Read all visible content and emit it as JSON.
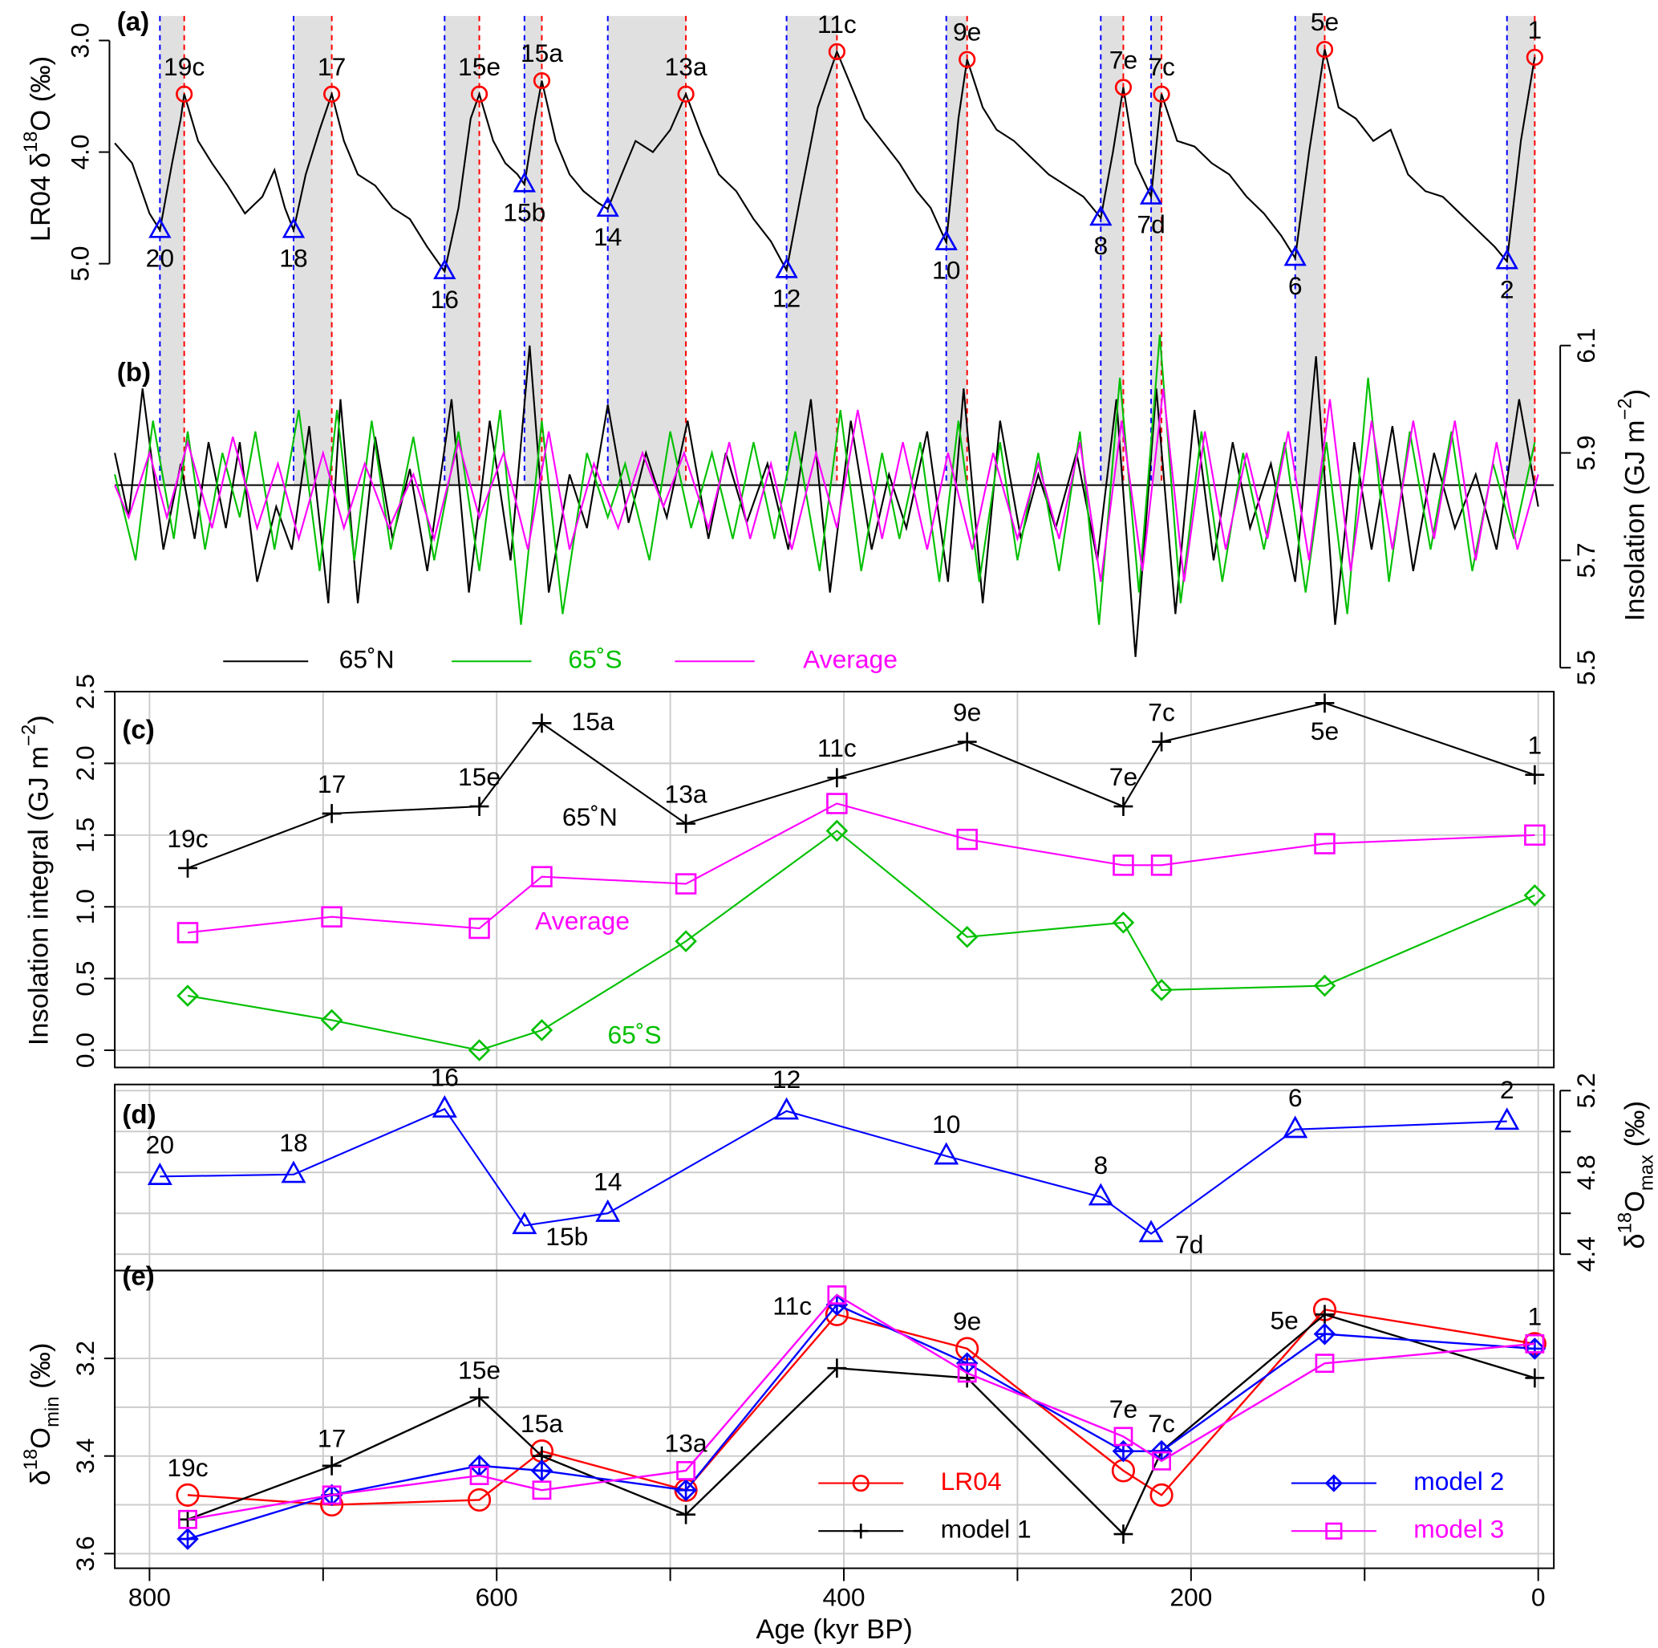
{
  "chart_data": [
    {
      "type": "line",
      "panel": "(a)",
      "ylabel": [
        {
          "text": "LR04 δ"
        },
        {
          "text": "18",
          "shift": "super"
        },
        {
          "text": "O (‰)"
        }
      ],
      "xlim": [
        820,
        -9
      ],
      "ylim": [
        2.78,
        5.1
      ],
      "invert_y": true,
      "yticks": [
        {
          "value": 3,
          "label": "3.0"
        },
        {
          "value": 4,
          "label": "4.0"
        },
        {
          "value": 5,
          "label": "5.0"
        }
      ],
      "color": "#000000",
      "shade_color": "#e0e0e0",
      "x": [
        820,
        810,
        800,
        794,
        787,
        782,
        780,
        772,
        764,
        755,
        745,
        735,
        728,
        722,
        717,
        710,
        702,
        695,
        688,
        680,
        670,
        660,
        650,
        640,
        630,
        622,
        615,
        610,
        602,
        595,
        588,
        584,
        578,
        574,
        566,
        558,
        550,
        542,
        536,
        528,
        520,
        510,
        500,
        491,
        482,
        472,
        462,
        452,
        442,
        433,
        425,
        415,
        404,
        396,
        388,
        378,
        368,
        358,
        350,
        341,
        334,
        329,
        320,
        312,
        302,
        292,
        282,
        272,
        262,
        252,
        245,
        239,
        232,
        223,
        217,
        208,
        198,
        188,
        178,
        168,
        158,
        148,
        140,
        132,
        123,
        115,
        105,
        95,
        85,
        75,
        65,
        55,
        45,
        35,
        25,
        18,
        10,
        2
      ],
      "values": [
        3.92,
        4.1,
        4.55,
        4.7,
        4.1,
        3.7,
        3.48,
        3.9,
        4.1,
        4.3,
        4.55,
        4.4,
        4.16,
        4.5,
        4.7,
        4.2,
        3.8,
        3.48,
        3.9,
        4.2,
        4.3,
        4.5,
        4.6,
        4.85,
        5.07,
        4.5,
        3.7,
        3.48,
        3.9,
        4.1,
        4.2,
        4.29,
        3.7,
        3.36,
        3.9,
        4.2,
        4.35,
        4.45,
        4.51,
        4.2,
        3.9,
        4.0,
        3.8,
        3.48,
        3.85,
        4.2,
        4.35,
        4.6,
        4.8,
        5.06,
        4.4,
        3.6,
        3.1,
        3.4,
        3.7,
        3.9,
        4.1,
        4.35,
        4.5,
        4.81,
        3.7,
        3.17,
        3.6,
        3.8,
        3.9,
        4.05,
        4.2,
        4.3,
        4.4,
        4.59,
        4.0,
        3.42,
        4.1,
        4.4,
        3.48,
        3.9,
        3.95,
        4.1,
        4.2,
        4.4,
        4.55,
        4.75,
        4.95,
        4.0,
        3.08,
        3.6,
        3.7,
        3.9,
        3.8,
        4.2,
        4.35,
        4.4,
        4.55,
        4.7,
        4.85,
        4.98,
        3.9,
        3.15
      ],
      "peaks": {
        "color": "#ff0000",
        "labels": [
          "19c",
          "17",
          "15e",
          "15a",
          "13a",
          "11c",
          "9e",
          "7e",
          "7c",
          "5e",
          "1"
        ],
        "x": [
          780,
          695,
          610,
          574,
          491,
          404,
          329,
          239,
          217,
          123,
          2
        ],
        "values": [
          3.48,
          3.48,
          3.48,
          3.36,
          3.48,
          3.1,
          3.17,
          3.42,
          3.48,
          3.08,
          3.15
        ]
      },
      "troughs": {
        "color": "#0000ff",
        "labels": [
          "20",
          "18",
          "16",
          "15b",
          "14",
          "12",
          "10",
          "8",
          "7d",
          "6",
          "2"
        ],
        "x": [
          794,
          717,
          630,
          584,
          536,
          433,
          341,
          252,
          223,
          140,
          18
        ],
        "values": [
          4.7,
          4.7,
          5.07,
          4.29,
          4.51,
          5.06,
          4.81,
          4.59,
          4.4,
          4.95,
          4.98
        ]
      }
    },
    {
      "type": "line",
      "panel": "(b)",
      "ylabel": [
        {
          "text": "Insolation (GJ m"
        },
        {
          "text": "−2",
          "shift": "super"
        },
        {
          "text": ")"
        }
      ],
      "xlim": [
        820,
        -9
      ],
      "ylim": [
        5.5,
        6.2
      ],
      "yticks": [
        5.5,
        5.7,
        5.9,
        6.1
      ],
      "hline": 5.84,
      "series": [
        {
          "name": "65˚N",
          "color": "#000000",
          "x": [
            820,
            812,
            804,
            792,
            782,
            774,
            766,
            756,
            748,
            738,
            727,
            718,
            708,
            697,
            690,
            680,
            670,
            660,
            650,
            640,
            626,
            616,
            604,
            592,
            581,
            570,
            558,
            548,
            536,
            524,
            514,
            502,
            490,
            478,
            468,
            456,
            444,
            432,
            419,
            408,
            396,
            384,
            374,
            364,
            352,
            340,
            331,
            320,
            310,
            298,
            288,
            278,
            266,
            254,
            243,
            232,
            220,
            209,
            198,
            187,
            176,
            166,
            154,
            140,
            128,
            117,
            106,
            96,
            84,
            72,
            60,
            48,
            36,
            24,
            11,
            0
          ],
          "values": [
            5.9,
            5.78,
            6.02,
            5.72,
            5.88,
            5.74,
            5.92,
            5.76,
            5.92,
            5.66,
            5.8,
            5.72,
            5.95,
            5.62,
            6.0,
            5.62,
            5.93,
            5.74,
            5.87,
            5.68,
            6.0,
            5.64,
            5.96,
            5.7,
            6.1,
            5.64,
            5.86,
            5.76,
            5.99,
            5.77,
            5.9,
            5.78,
            5.96,
            5.74,
            5.9,
            5.77,
            5.88,
            5.72,
            6.0,
            5.64,
            5.96,
            5.72,
            5.86,
            5.76,
            5.94,
            5.66,
            6.02,
            5.62,
            5.96,
            5.74,
            5.86,
            5.76,
            5.9,
            5.7,
            6.0,
            5.52,
            6.02,
            5.6,
            5.98,
            5.7,
            5.92,
            5.76,
            5.88,
            5.66,
            6.08,
            5.58,
            5.92,
            5.72,
            5.95,
            5.68,
            5.9,
            5.76,
            5.86,
            5.72,
            6.0,
            5.8
          ]
        },
        {
          "name": "65˚S",
          "color": "#00c000",
          "x": [
            820,
            808,
            798,
            786,
            778,
            768,
            758,
            748,
            739,
            728,
            714,
            702,
            692,
            682,
            672,
            661,
            648,
            636,
            622,
            610,
            598,
            586,
            574,
            562,
            548,
            536,
            526,
            512,
            500,
            488,
            476,
            464,
            452,
            440,
            428,
            414,
            402,
            390,
            378,
            368,
            356,
            345,
            334,
            322,
            310,
            300,
            288,
            276,
            264,
            253,
            241,
            230,
            218,
            206,
            194,
            182,
            170,
            158,
            146,
            134,
            122,
            110,
            98,
            86,
            74,
            62,
            50,
            38,
            26,
            14,
            2
          ],
          "values": [
            5.86,
            5.7,
            5.96,
            5.74,
            5.94,
            5.72,
            5.9,
            5.78,
            5.94,
            5.72,
            5.98,
            5.68,
            5.98,
            5.7,
            5.96,
            5.72,
            5.93,
            5.7,
            5.94,
            5.68,
            5.98,
            5.58,
            5.96,
            5.6,
            5.9,
            5.78,
            5.88,
            5.7,
            5.94,
            5.76,
            5.9,
            5.74,
            5.92,
            5.74,
            5.94,
            5.68,
            5.98,
            5.68,
            5.9,
            5.74,
            5.92,
            5.66,
            5.96,
            5.66,
            5.92,
            5.7,
            5.9,
            5.68,
            5.94,
            5.58,
            6.04,
            5.64,
            6.12,
            5.62,
            5.94,
            5.66,
            5.9,
            5.72,
            5.92,
            5.64,
            5.92,
            5.6,
            6.04,
            5.66,
            5.94,
            5.72,
            5.94,
            5.68,
            5.88,
            5.74,
            5.92
          ]
        },
        {
          "name": "Average",
          "color": "#ff00ff",
          "x": [
            820,
            812,
            800,
            790,
            778,
            764,
            752,
            738,
            726,
            714,
            700,
            688,
            676,
            662,
            648,
            636,
            622,
            610,
            596,
            582,
            570,
            558,
            544,
            530,
            516,
            504,
            492,
            478,
            466,
            454,
            442,
            430,
            416,
            404,
            392,
            378,
            366,
            352,
            340,
            326,
            314,
            300,
            288,
            276,
            264,
            252,
            240,
            228,
            216,
            204,
            192,
            180,
            168,
            156,
            144,
            132,
            120,
            108,
            96,
            84,
            72,
            60,
            48,
            36,
            24,
            12,
            0
          ],
          "values": [
            5.84,
            5.78,
            5.9,
            5.78,
            5.92,
            5.76,
            5.93,
            5.76,
            5.88,
            5.74,
            5.9,
            5.76,
            5.88,
            5.76,
            5.86,
            5.74,
            5.92,
            5.78,
            5.9,
            5.72,
            5.94,
            5.72,
            5.88,
            5.76,
            5.9,
            5.8,
            5.9,
            5.76,
            5.92,
            5.74,
            5.88,
            5.72,
            5.9,
            5.76,
            5.98,
            5.74,
            5.92,
            5.72,
            5.9,
            5.72,
            5.9,
            5.74,
            5.88,
            5.74,
            5.92,
            5.66,
            5.96,
            5.68,
            6.02,
            5.66,
            5.94,
            5.72,
            5.9,
            5.74,
            5.94,
            5.7,
            6.0,
            5.68,
            5.96,
            5.72,
            5.96,
            5.74,
            5.96,
            5.7,
            5.92,
            5.72,
            5.86
          ]
        }
      ]
    },
    {
      "type": "line",
      "panel": "(c)",
      "ylabel": [
        {
          "text": "Insolation integral (GJ m"
        },
        {
          "text": "−2",
          "shift": "super"
        },
        {
          "text": ")"
        }
      ],
      "xlim": [
        820,
        -9
      ],
      "ylim": [
        -0.12,
        2.5
      ],
      "yticks": [
        {
          "value": 0,
          "label": "0.0"
        },
        0.5,
        {
          "value": 1,
          "label": "1.0"
        },
        1.5,
        {
          "value": 2,
          "label": "2.0"
        },
        2.5
      ],
      "xgrid": [
        800,
        700,
        600,
        500,
        400,
        300,
        200,
        100,
        0
      ],
      "grid": true,
      "labels": [
        "19c",
        "17",
        "15e",
        "15a",
        "13a",
        "11c",
        "9e",
        "7e",
        "7c",
        "5e",
        "1"
      ],
      "x": [
        778,
        695,
        610,
        574,
        491,
        404,
        329,
        239,
        217,
        123,
        2
      ],
      "series": [
        {
          "name": "65˚N",
          "color": "#000000",
          "marker": "plus",
          "values": [
            1.27,
            1.65,
            1.7,
            2.28,
            1.58,
            1.9,
            2.15,
            1.7,
            2.15,
            2.42,
            1.92
          ]
        },
        {
          "name": "Average",
          "color": "#ff00ff",
          "marker": "square",
          "values": [
            0.82,
            0.93,
            0.85,
            1.21,
            1.16,
            1.72,
            1.47,
            1.29,
            1.29,
            1.44,
            1.5
          ]
        },
        {
          "name": "65˚S",
          "color": "#00c000",
          "marker": "diamond",
          "values": [
            0.38,
            0.21,
            0.0,
            0.14,
            0.76,
            1.53,
            0.79,
            0.89,
            0.42,
            0.45,
            1.08
          ]
        }
      ]
    },
    {
      "type": "line",
      "panel": "(d)",
      "ylabel": [
        {
          "text": "δ"
        },
        {
          "text": "18",
          "shift": "super"
        },
        {
          "text": "O"
        },
        {
          "text": "max",
          "shift": "sub"
        },
        {
          "text": " (‰)"
        }
      ],
      "xlim": [
        820,
        -9
      ],
      "ylim": [
        4.32,
        5.23
      ],
      "yticks": [
        4.4,
        4.8,
        5.2
      ],
      "ygrid": [
        4.4,
        4.6,
        4.8,
        5.0,
        5.2
      ],
      "xgrid": [
        800,
        700,
        600,
        500,
        400,
        300,
        200,
        100,
        0
      ],
      "grid": true,
      "labels": [
        "20",
        "18",
        "16",
        "15b",
        "14",
        "12",
        "10",
        "8",
        "7d",
        "6",
        "2"
      ],
      "x": [
        794,
        717,
        630,
        584,
        536,
        433,
        341,
        252,
        223,
        140,
        18
      ],
      "color": "#0000ff",
      "marker": "triangle",
      "values": [
        4.78,
        4.79,
        5.11,
        4.54,
        4.6,
        5.1,
        4.88,
        4.68,
        4.5,
        5.01,
        5.05
      ]
    },
    {
      "type": "line",
      "panel": "(e)",
      "ylabel": [
        {
          "text": "δ"
        },
        {
          "text": "18",
          "shift": "super"
        },
        {
          "text": "O"
        },
        {
          "text": "min",
          "shift": "sub"
        },
        {
          "text": " (‰)"
        }
      ],
      "xlabel": "Age (kyr BP)",
      "xlim": [
        820,
        -9
      ],
      "ylim": [
        3.02,
        3.63
      ],
      "invert_y": true,
      "yticks": [
        3.2,
        3.4,
        3.6
      ],
      "ygrid": [
        3.2,
        3.3,
        3.4,
        3.5,
        3.6
      ],
      "xticks": [
        800,
        600,
        400,
        200,
        0
      ],
      "xgrid": [
        800,
        700,
        600,
        500,
        400,
        300,
        200,
        100,
        0
      ],
      "grid": true,
      "labels": [
        "19c",
        "17",
        "15e",
        "15a",
        "13a",
        "11c",
        "9e",
        "7e",
        "7c",
        "5e",
        "1"
      ],
      "x": [
        778,
        695,
        610,
        574,
        491,
        404,
        329,
        239,
        217,
        123,
        2
      ],
      "series": [
        {
          "name": "LR04",
          "color": "#ff0000",
          "marker": "circle",
          "values": [
            3.48,
            3.5,
            3.49,
            3.39,
            3.47,
            3.11,
            3.18,
            3.43,
            3.48,
            3.1,
            3.17
          ]
        },
        {
          "name": "model 1",
          "color": "#000000",
          "marker": "plus",
          "values": [
            3.53,
            3.42,
            3.28,
            3.4,
            3.52,
            3.22,
            3.24,
            3.56,
            3.39,
            3.11,
            3.24
          ]
        },
        {
          "name": "model 2",
          "color": "#0000ff",
          "marker": "diamondplus",
          "values": [
            3.57,
            3.48,
            3.42,
            3.43,
            3.47,
            3.09,
            3.21,
            3.39,
            3.39,
            3.15,
            3.18
          ]
        },
        {
          "name": "model 3",
          "color": "#ff00ff",
          "marker": "square",
          "values": [
            3.53,
            3.48,
            3.44,
            3.47,
            3.43,
            3.07,
            3.23,
            3.36,
            3.41,
            3.21,
            3.17
          ]
        }
      ]
    }
  ]
}
